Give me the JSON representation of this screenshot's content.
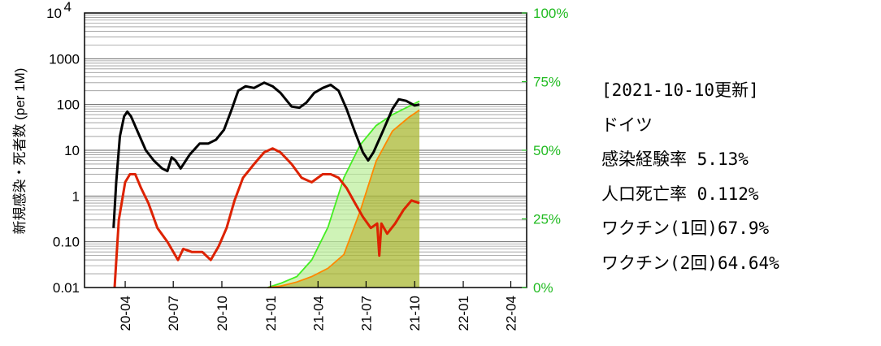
{
  "info": {
    "date_line": "[2021-10-10更新]",
    "country": "ドイツ",
    "infection_label": "感染経験率",
    "infection_value": "5.13%",
    "death_label": "人口死亡率",
    "death_value": "0.112%",
    "vaccine1_label": "ワクチン",
    "vaccine1_dose": "(1回)",
    "vaccine1_value": "67.9%",
    "vaccine2_label": "ワクチン",
    "vaccine2_dose": "(2回)",
    "vaccine2_value": "64.64%"
  },
  "colors": {
    "cases": "#000000",
    "deaths": "#dd2200",
    "deaths_late": "#cc4400",
    "vaccine1": "#44ee22",
    "vaccine2": "#ff8800",
    "vaccine_fill": "#aab833",
    "percent_axis": "#22bb22"
  },
  "chart_data": {
    "type": "line",
    "ylabel": "新規感染・死者数 (per 1M)",
    "xlabel": "",
    "y_scale": "log",
    "ylim": [
      0.01,
      10000
    ],
    "y_ticks": [
      "0.01",
      "0.10",
      "1",
      "10",
      "100",
      "1000",
      "10^4"
    ],
    "y2_ticks": [
      "0%",
      "25%",
      "50%",
      "75%",
      "100%"
    ],
    "y2lim": [
      0,
      100
    ],
    "x_ticks": [
      "20-04",
      "20-07",
      "20-10",
      "21-01",
      "21-04",
      "21-07",
      "21-10",
      "22-01",
      "22-04"
    ],
    "x_range": [
      "2020-01-15",
      "2022-05-01"
    ],
    "grid": true,
    "series": [
      {
        "key": "cases",
        "axis": "left",
        "points": [
          [
            "2020-03-10",
            0.2
          ],
          [
            "2020-03-15",
            2
          ],
          [
            "2020-03-22",
            20
          ],
          [
            "2020-03-30",
            55
          ],
          [
            "2020-04-05",
            70
          ],
          [
            "2020-04-12",
            55
          ],
          [
            "2020-04-25",
            25
          ],
          [
            "2020-05-10",
            10
          ],
          [
            "2020-05-25",
            6
          ],
          [
            "2020-06-10",
            4
          ],
          [
            "2020-06-20",
            3.5
          ],
          [
            "2020-06-28",
            7
          ],
          [
            "2020-07-05",
            6
          ],
          [
            "2020-07-15",
            4
          ],
          [
            "2020-08-01",
            8
          ],
          [
            "2020-08-20",
            14
          ],
          [
            "2020-09-05",
            14
          ],
          [
            "2020-09-20",
            17
          ],
          [
            "2020-10-05",
            28
          ],
          [
            "2020-10-20",
            80
          ],
          [
            "2020-11-01",
            200
          ],
          [
            "2020-11-15",
            250
          ],
          [
            "2020-12-01",
            230
          ],
          [
            "2020-12-20",
            300
          ],
          [
            "2021-01-05",
            250
          ],
          [
            "2021-01-20",
            180
          ],
          [
            "2021-02-10",
            90
          ],
          [
            "2021-02-25",
            85
          ],
          [
            "2021-03-10",
            110
          ],
          [
            "2021-03-25",
            180
          ],
          [
            "2021-04-10",
            230
          ],
          [
            "2021-04-25",
            270
          ],
          [
            "2021-05-10",
            200
          ],
          [
            "2021-05-25",
            80
          ],
          [
            "2021-06-10",
            25
          ],
          [
            "2021-06-25",
            9
          ],
          [
            "2021-07-05",
            6
          ],
          [
            "2021-07-15",
            9
          ],
          [
            "2021-08-01",
            25
          ],
          [
            "2021-08-20",
            80
          ],
          [
            "2021-09-01",
            130
          ],
          [
            "2021-09-15",
            120
          ],
          [
            "2021-10-01",
            95
          ],
          [
            "2021-10-10",
            100
          ]
        ]
      },
      {
        "key": "deaths",
        "axis": "left",
        "points": [
          [
            "2020-03-12",
            0.01
          ],
          [
            "2020-03-20",
            0.3
          ],
          [
            "2020-04-01",
            2
          ],
          [
            "2020-04-10",
            3
          ],
          [
            "2020-04-20",
            3
          ],
          [
            "2020-05-01",
            1.5
          ],
          [
            "2020-05-15",
            0.7
          ],
          [
            "2020-06-01",
            0.2
          ],
          [
            "2020-06-20",
            0.1
          ],
          [
            "2020-07-10",
            0.04
          ],
          [
            "2020-07-20",
            0.07
          ],
          [
            "2020-08-05",
            0.06
          ],
          [
            "2020-08-25",
            0.06
          ],
          [
            "2020-09-10",
            0.04
          ],
          [
            "2020-09-25",
            0.08
          ],
          [
            "2020-10-10",
            0.2
          ],
          [
            "2020-10-25",
            0.8
          ],
          [
            "2020-11-10",
            2.5
          ],
          [
            "2020-12-01",
            5
          ],
          [
            "2020-12-20",
            9
          ],
          [
            "2021-01-05",
            11
          ],
          [
            "2021-01-20",
            9
          ],
          [
            "2021-02-10",
            5
          ],
          [
            "2021-03-01",
            2.5
          ],
          [
            "2021-03-20",
            2
          ],
          [
            "2021-04-10",
            3
          ],
          [
            "2021-04-25",
            3
          ],
          [
            "2021-05-10",
            2.5
          ],
          [
            "2021-05-25",
            1.5
          ],
          [
            "2021-06-10",
            0.7
          ],
          [
            "2021-06-25",
            0.35
          ],
          [
            "2021-07-10",
            0.2
          ],
          [
            "2021-07-22",
            0.25
          ],
          [
            "2021-07-26",
            0.05
          ],
          [
            "2021-07-30",
            0.25
          ],
          [
            "2021-08-10",
            0.15
          ],
          [
            "2021-08-25",
            0.25
          ],
          [
            "2021-09-10",
            0.5
          ],
          [
            "2021-09-25",
            0.8
          ],
          [
            "2021-10-10",
            0.7
          ]
        ]
      },
      {
        "key": "vaccine1",
        "axis": "right",
        "points": [
          [
            "2020-12-27",
            0
          ],
          [
            "2021-01-20",
            1.5
          ],
          [
            "2021-02-20",
            4
          ],
          [
            "2021-03-20",
            10
          ],
          [
            "2021-04-20",
            22
          ],
          [
            "2021-05-20",
            40
          ],
          [
            "2021-06-20",
            52
          ],
          [
            "2021-07-20",
            59
          ],
          [
            "2021-08-20",
            63
          ],
          [
            "2021-09-20",
            66
          ],
          [
            "2021-10-10",
            67.9
          ]
        ]
      },
      {
        "key": "vaccine2",
        "axis": "right",
        "points": [
          [
            "2020-12-27",
            0
          ],
          [
            "2021-01-20",
            0.5
          ],
          [
            "2021-02-20",
            2
          ],
          [
            "2021-03-20",
            4
          ],
          [
            "2021-04-20",
            7
          ],
          [
            "2021-05-20",
            12
          ],
          [
            "2021-06-20",
            28
          ],
          [
            "2021-07-20",
            46
          ],
          [
            "2021-08-20",
            57
          ],
          [
            "2021-09-20",
            62
          ],
          [
            "2021-10-10",
            64.64
          ]
        ]
      }
    ]
  }
}
